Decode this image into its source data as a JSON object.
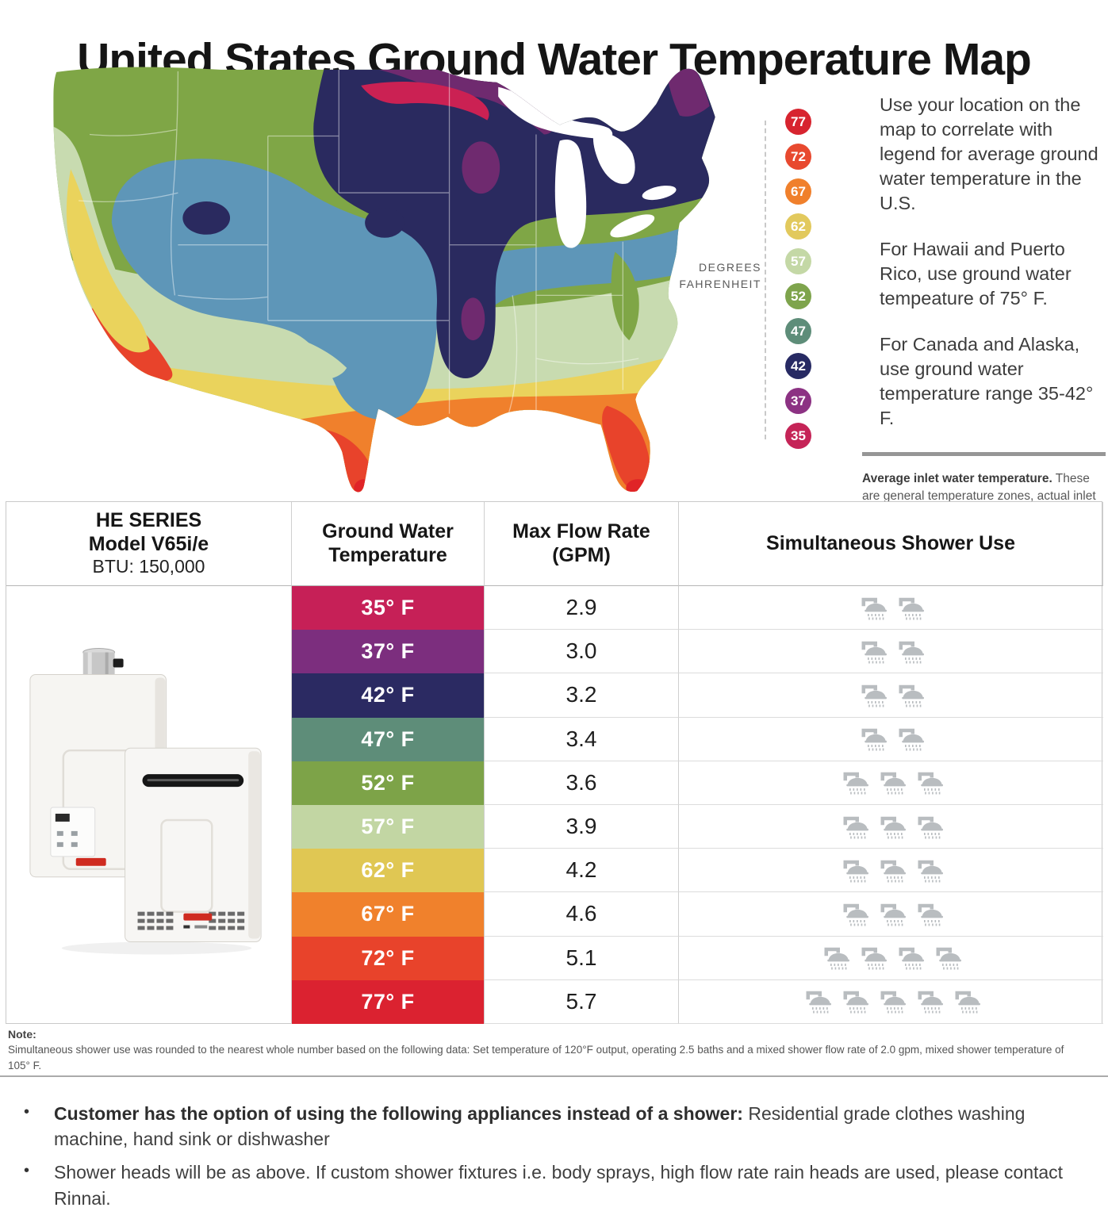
{
  "title": "United States Ground Water Temperature Map",
  "map": {
    "degrees_line1": "DEGREES",
    "degrees_line2": "FAHRENHEIT",
    "legend": [
      {
        "value": "77",
        "color": "#D7242F"
      },
      {
        "value": "72",
        "color": "#E8492F"
      },
      {
        "value": "67",
        "color": "#F0802C"
      },
      {
        "value": "62",
        "color": "#E2C95D"
      },
      {
        "value": "57",
        "color": "#C4D8A6"
      },
      {
        "value": "52",
        "color": "#7EA44C"
      },
      {
        "value": "47",
        "color": "#5E8D79"
      },
      {
        "value": "42",
        "color": "#272A63"
      },
      {
        "value": "37",
        "color": "#8C3283"
      },
      {
        "value": "35",
        "color": "#C52457"
      }
    ],
    "zone_colors": {
      "green52": "#7FA646",
      "sage57": "#C8DBB0",
      "yellow62": "#EAD35C",
      "orange67": "#F0802C",
      "redorange72": "#E8432B",
      "red77": "#E02427",
      "blue47": "#5E96B8",
      "navy42": "#2A2A5F",
      "purple37": "#6F2A6F",
      "crimson35": "#CB2153"
    },
    "notes": [
      "Use your location on the map to correlate with legend for average ground water temperature in the U.S.",
      "For Hawaii and Puerto Rico, use ground water tempeature of 75° F.",
      "For Canada and Alaska, use ground water temperature range 35-42° F."
    ],
    "inlet_note_title": "Average inlet water temperature.",
    "inlet_note_body": "These are general temperature zones, actual inlet temperature may be affected by local variations and"
  },
  "table": {
    "product": {
      "series": "HE SERIES",
      "model": "Model V65i/e",
      "btu": "BTU: 150,000"
    },
    "headers": {
      "temperature": "Ground Water Temperature",
      "flow": "Max Flow Rate (GPM)",
      "showers": "Simultaneous Shower Use"
    },
    "rows": [
      {
        "temp": "35° F",
        "gpm": "2.9",
        "showers": 2,
        "color": "#C62057"
      },
      {
        "temp": "37° F",
        "gpm": "3.0",
        "showers": 2,
        "color": "#7C2E7E"
      },
      {
        "temp": "42° F",
        "gpm": "3.2",
        "showers": 2,
        "color": "#2B2A62"
      },
      {
        "temp": "47° F",
        "gpm": "3.4",
        "showers": 2,
        "color": "#5E8D79"
      },
      {
        "temp": "52° F",
        "gpm": "3.6",
        "showers": 3,
        "color": "#7DA348"
      },
      {
        "temp": "57° F",
        "gpm": "3.9",
        "showers": 3,
        "color": "#C2D6A3"
      },
      {
        "temp": "62° F",
        "gpm": "4.2",
        "showers": 3,
        "color": "#E0C753"
      },
      {
        "temp": "67° F",
        "gpm": "4.6",
        "showers": 3,
        "color": "#F0812C"
      },
      {
        "temp": "72° F",
        "gpm": "5.1",
        "showers": 4,
        "color": "#E8432B"
      },
      {
        "temp": "77° F",
        "gpm": "5.7",
        "showers": 5,
        "color": "#DB2230"
      }
    ]
  },
  "footnote": {
    "label": "Note:",
    "text": "Simultaneous shower use was rounded to the nearest whole number based on the following data: Set temperature of 120°F output, operating 2.5 baths and a mixed shower flow rate of 2.0 gpm, mixed shower temperature of 105° F."
  },
  "bullets": [
    {
      "lead": "Customer has the option of using the following appliances instead of a shower:",
      "rest": " Residential grade clothes washing machine, hand sink or dishwasher"
    },
    {
      "lead": "",
      "rest": "Shower heads will be as above. If custom shower fixtures  i.e. body sprays, high flow rate rain heads are used, please contact Rinnai."
    }
  ]
}
